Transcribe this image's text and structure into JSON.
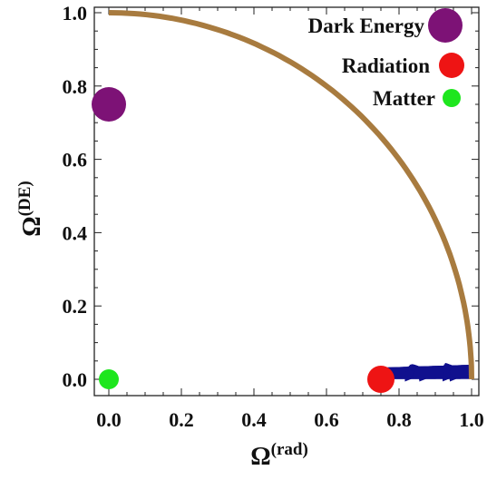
{
  "chart_data": {
    "type": "streamplot",
    "xlabel": "Ω",
    "xlabel_sup": "(rad)",
    "ylabel": "Ω",
    "ylabel_sup": "(DE)",
    "xlim": [
      0,
      1
    ],
    "ylim": [
      0,
      1
    ],
    "xticks": [
      "0.0",
      "0.2",
      "0.4",
      "0.6",
      "0.8",
      "1.0"
    ],
    "yticks": [
      "0.0",
      "0.2",
      "0.4",
      "0.6",
      "0.8",
      "1.0"
    ],
    "boundary": {
      "description": "x^2 + y^2 = 1",
      "color": "#a87b3f"
    },
    "stream_color": "#10108e",
    "fixed_points": [
      {
        "name": "Dark Energy",
        "x": 0.0,
        "y": 0.75,
        "color": "#7d1276"
      },
      {
        "name": "Radiation",
        "x": 0.75,
        "y": 0.0,
        "color": "#ee1414"
      },
      {
        "name": "Matter",
        "x": 0.0,
        "y": 0.0,
        "color": "#1ee61e"
      }
    ],
    "legend": [
      {
        "label": "Dark Energy",
        "color": "#7d1276"
      },
      {
        "label": "Radiation",
        "color": "#ee1414"
      },
      {
        "label": "Matter",
        "color": "#1ee61e"
      }
    ],
    "legend_position": "top-right"
  }
}
